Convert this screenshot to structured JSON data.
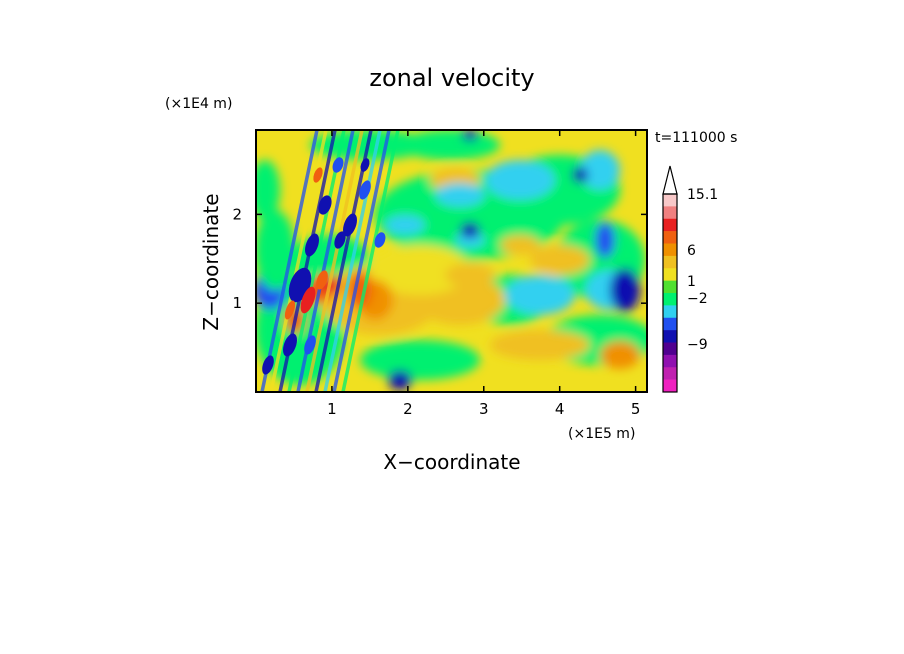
{
  "chart_data": {
    "type": "heatmap",
    "title": "zonal velocity",
    "xlabel": "X−coordinate",
    "ylabel": "Z−coordinate",
    "x_units": "(×1E5 m)",
    "y_units": "(×1E4 m)",
    "time_label": "t=111000 s",
    "xlim": [
      0,
      5.15
    ],
    "ylim": [
      0,
      2.95
    ],
    "x_ticks": [
      1,
      2,
      3,
      4,
      5
    ],
    "y_ticks": [
      1,
      2
    ],
    "colorbar": {
      "labeled_values": [
        "15.1",
        "6",
        "1",
        "−2",
        "−9"
      ],
      "colors_top_to_bottom": [
        "#f8c8c8",
        "#f08080",
        "#e82020",
        "#f06010",
        "#f09000",
        "#f0c020",
        "#f0e020",
        "#50e030",
        "#00f070",
        "#30d0f0",
        "#2050f0",
        "#1010b0",
        "#500090",
        "#9010b0",
        "#c020b0",
        "#f020c0"
      ]
    },
    "grid": false,
    "legend": "colorbar-right"
  }
}
